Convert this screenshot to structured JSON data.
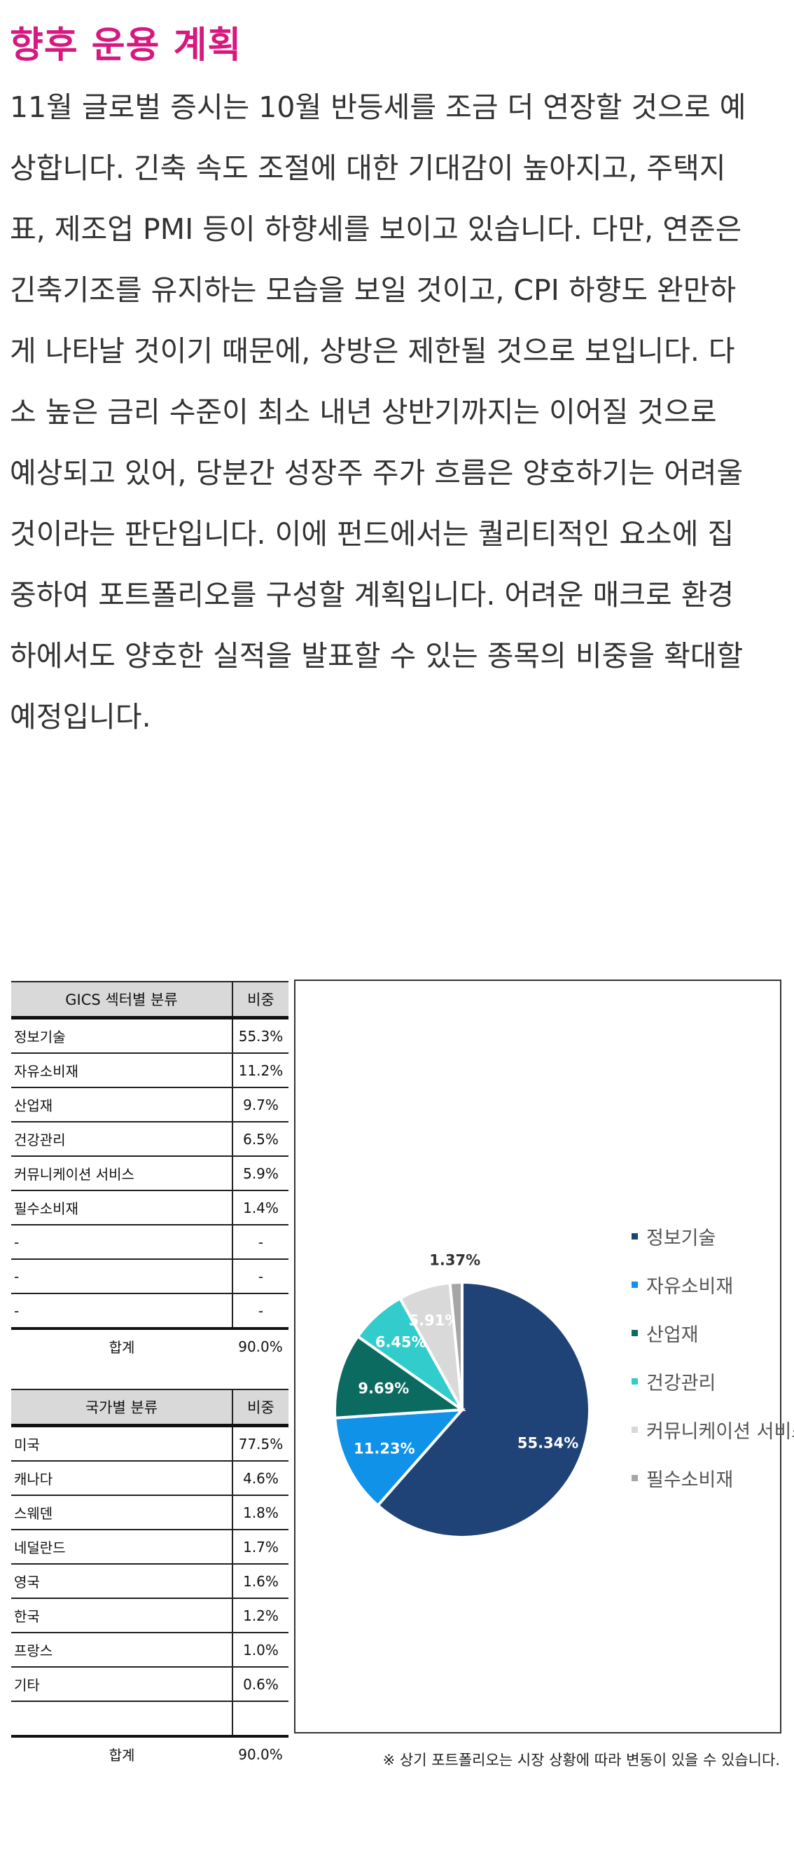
{
  "heading": "향후 운용 계획",
  "paragraph_lines": [
    "11월 글로벌 증시는 10월 반등세를 조금 더 연장할 것으로 예",
    "상합니다. 긴축 속도 조절에 대한 기대감이 높아지고, 주택지",
    "표, 제조업 PMI 등이 하향세를 보이고 있습니다. 다만, 연준은",
    "긴축기조를 유지하는 모습을 보일 것이고, CPI 하향도 완만하",
    "게 나타날 것이기 때문에, 상방은 제한될 것으로 보입니다. 다",
    "소 높은 금리 수준이 최소 내년 상반기까지는 이어질 것으로",
    "예상되고 있어, 당분간 성장주 주가 흐름은 양호하기는 어려울",
    "것이라는 판단입니다. 이에 펀드에서는 퀄리티적인 요소에 집",
    "중하여 포트폴리오를 구성할 계획입니다. 어려운 매크로 환경",
    "하에서도 양호한 실적을 발표할 수 있는 종목의 비중을 확대할",
    "예정입니다."
  ],
  "sector_table": {
    "header": [
      "GICS 섹터별 분류",
      "비중"
    ],
    "rows": [
      [
        "정보기술",
        "55.3%"
      ],
      [
        "자유소비재",
        "11.2%"
      ],
      [
        "산업재",
        "9.7%"
      ],
      [
        "건강관리",
        "6.5%"
      ],
      [
        "커뮤니케이션 서비스",
        "5.9%"
      ],
      [
        "필수소비재",
        "1.4%"
      ],
      [
        "-",
        "-"
      ],
      [
        "-",
        "-"
      ],
      [
        "-",
        "-"
      ]
    ],
    "total": [
      "합계",
      "90.0%"
    ]
  },
  "country_table": {
    "header": [
      "국가별 분류",
      "비중"
    ],
    "rows": [
      [
        "미국",
        "77.5%"
      ],
      [
        "캐나다",
        "4.6%"
      ],
      [
        "스웨덴",
        "1.8%"
      ],
      [
        "네덜란드",
        "1.7%"
      ],
      [
        "영국",
        "1.6%"
      ],
      [
        "한국",
        "1.2%"
      ],
      [
        "프랑스",
        "1.0%"
      ],
      [
        "기타",
        "0.6%"
      ],
      [
        "",
        ""
      ]
    ],
    "total": [
      "합계",
      "90.0%"
    ]
  },
  "chart_data": {
    "type": "pie",
    "categories": [
      "정보기술",
      "자유소비재",
      "산업재",
      "건강관리",
      "커뮤니케이션 서비스",
      "필수소비재"
    ],
    "values": [
      55.34,
      11.23,
      9.69,
      6.45,
      5.91,
      1.37
    ],
    "labels": [
      "55.34%",
      "11.23%",
      "9.69%",
      "6.45%",
      "5.91%",
      "1.37%"
    ],
    "colors": [
      "#1f4277",
      "#0f92e8",
      "#0b6b60",
      "#33cccc",
      "#d9d9d9",
      "#a6a6a6"
    ],
    "label_colors": [
      "#ffffff",
      "#ffffff",
      "#ffffff",
      "#ffffff",
      "#ffffff",
      "#333333"
    ],
    "legend_position": "right",
    "start": "12 o'clock",
    "direction": "clockwise"
  },
  "footnote": "※ 상기 포트폴리오는 시장 상황에 따라 변동이 있을 수 있습니다."
}
